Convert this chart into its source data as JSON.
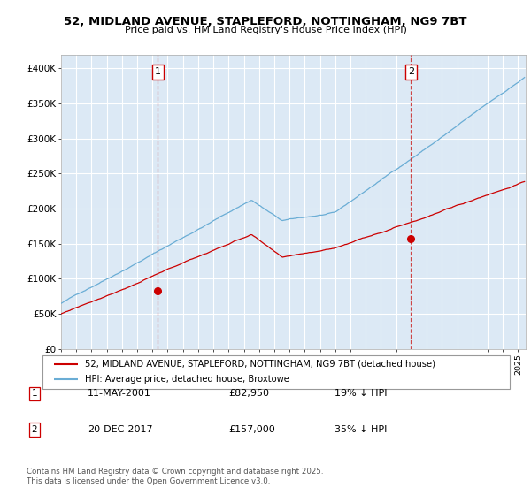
{
  "title": "52, MIDLAND AVENUE, STAPLEFORD, NOTTINGHAM, NG9 7BT",
  "subtitle": "Price paid vs. HM Land Registry's House Price Index (HPI)",
  "bg_color": "#dce9f5",
  "hpi_color": "#6aadd5",
  "price_color": "#cc0000",
  "ylim": [
    0,
    420000
  ],
  "yticks": [
    0,
    50000,
    100000,
    150000,
    200000,
    250000,
    300000,
    350000,
    400000
  ],
  "ytick_labels": [
    "£0",
    "£50K",
    "£100K",
    "£150K",
    "£200K",
    "£250K",
    "£300K",
    "£350K",
    "£400K"
  ],
  "xlim_start": 1995.0,
  "xlim_end": 2025.5,
  "marker1_x": 2001.36,
  "marker1_y": 82950,
  "marker2_x": 2017.97,
  "marker2_y": 157000,
  "legend_line1": "52, MIDLAND AVENUE, STAPLEFORD, NOTTINGHAM, NG9 7BT (detached house)",
  "legend_line2": "HPI: Average price, detached house, Broxtowe",
  "note1_label": "1",
  "note1_date": "11-MAY-2001",
  "note1_price": "£82,950",
  "note1_hpi": "19% ↓ HPI",
  "note2_label": "2",
  "note2_date": "20-DEC-2017",
  "note2_price": "£157,000",
  "note2_hpi": "35% ↓ HPI",
  "footer": "Contains HM Land Registry data © Crown copyright and database right 2025.\nThis data is licensed under the Open Government Licence v3.0."
}
